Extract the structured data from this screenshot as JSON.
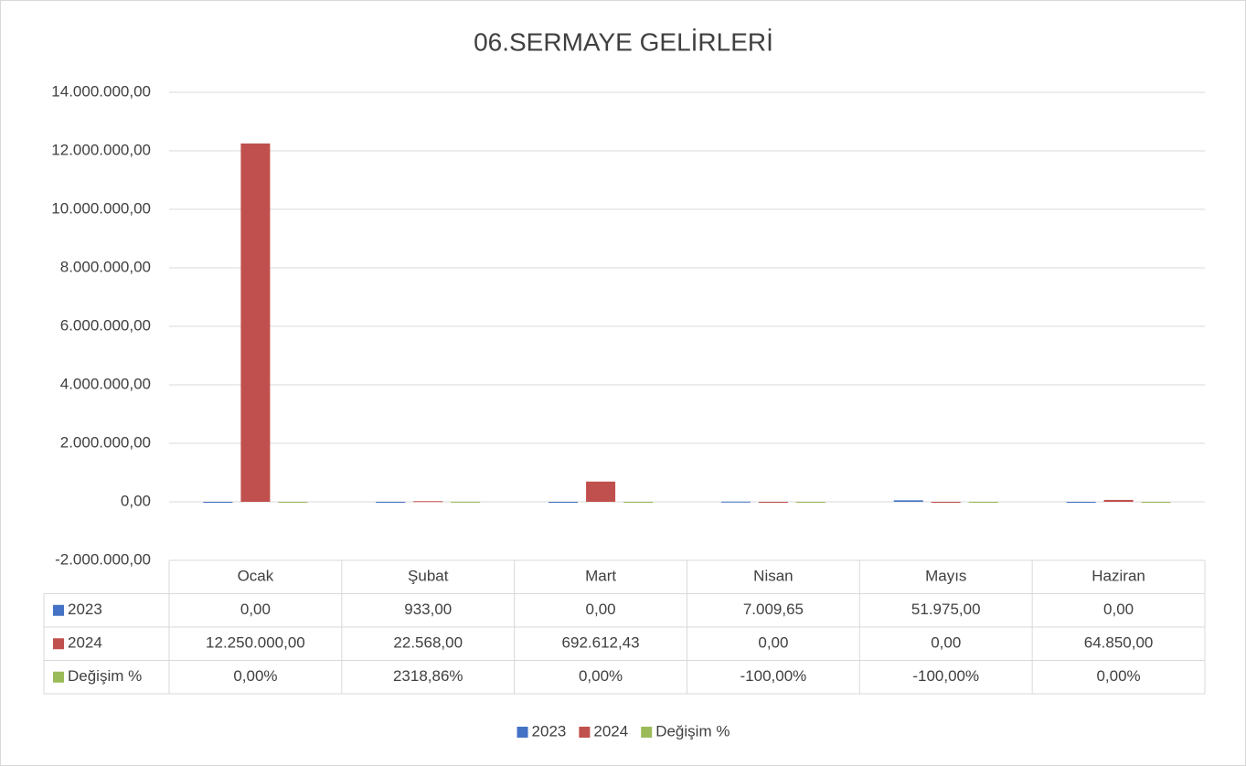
{
  "chart_data": {
    "type": "bar",
    "title": "06.SERMAYE GELİRLERİ",
    "categories": [
      "Ocak",
      "Şubat",
      "Mart",
      "Nisan",
      "Mayıs",
      "Haziran"
    ],
    "series": [
      {
        "name": "2023",
        "color": "#4472c4",
        "values": [
          0,
          933,
          0,
          7009.65,
          51975,
          0
        ],
        "value_labels": [
          "0,00",
          "933,00",
          "0,00",
          "7.009,65",
          "51.975,00",
          "0,00"
        ]
      },
      {
        "name": "2024",
        "color": "#c0504d",
        "values": [
          12250000,
          22568,
          692612.43,
          0,
          0,
          64850
        ],
        "value_labels": [
          "12.250.000,00",
          "22.568,00",
          "692.612,43",
          "0,00",
          "0,00",
          "64.850,00"
        ]
      },
      {
        "name": "Değişim %",
        "color": "#9bbb59",
        "values": [
          0,
          2318.86,
          0,
          -100,
          -100,
          0
        ],
        "value_labels": [
          "0,00%",
          "2318,86%",
          "0,00%",
          "-100,00%",
          "-100,00%",
          "0,00%"
        ]
      }
    ],
    "ylim": [
      -2000000,
      14000000
    ],
    "yticks": [
      {
        "value": -2000000,
        "label": "-2.000.000,00"
      },
      {
        "value": 0,
        "label": "0,00"
      },
      {
        "value": 2000000,
        "label": "2.000.000,00"
      },
      {
        "value": 4000000,
        "label": "4.000.000,00"
      },
      {
        "value": 6000000,
        "label": "6.000.000,00"
      },
      {
        "value": 8000000,
        "label": "8.000.000,00"
      },
      {
        "value": 10000000,
        "label": "10.000.000,00"
      },
      {
        "value": 12000000,
        "label": "12.000.000,00"
      },
      {
        "value": 14000000,
        "label": "14.000.000,00"
      }
    ],
    "grid": true,
    "legend": "bottom",
    "data_table": true
  }
}
